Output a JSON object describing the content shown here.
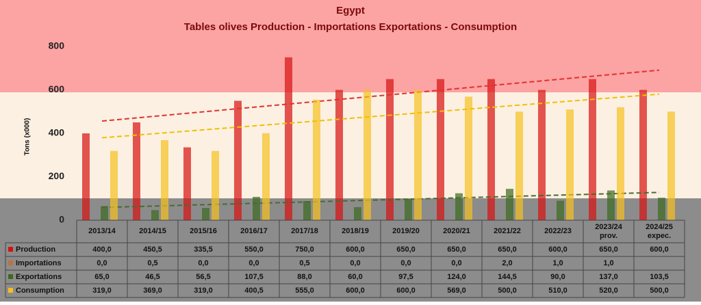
{
  "chart_data": {
    "type": "bar",
    "title": "Egypt",
    "subtitle": "Tables olives Production - Importations Exportations - Consumption",
    "y_label": "Tons (x000)",
    "categories": [
      "2013/14",
      "2014/15",
      "2015/16",
      "2016/17",
      "2017/18",
      "2018/19",
      "2019/20",
      "2020/21",
      "2021/22",
      "2022/23",
      "2023/24 prov.",
      "2024/25 expec."
    ],
    "ylim": [
      0,
      800
    ],
    "yticks": [
      0,
      200,
      400,
      600,
      800
    ],
    "series": [
      {
        "name": "Production",
        "color": "#d81010",
        "trendline": true,
        "trend_color": "#e03030",
        "values": [
          400,
          450.5,
          335.5,
          550,
          750,
          600,
          650,
          650,
          650,
          600,
          650,
          600
        ],
        "value_labels": [
          "400,0",
          "450,5",
          "335,5",
          "550,0",
          "750,0",
          "600,0",
          "650,0",
          "650,0",
          "650,0",
          "600,0",
          "650,0",
          "600,0"
        ]
      },
      {
        "name": "Importations",
        "color": "#c0703a",
        "trendline": false,
        "values": [
          0,
          0.5,
          0,
          0,
          0.5,
          0,
          0,
          0,
          2,
          1,
          1,
          null
        ],
        "value_labels": [
          "0,0",
          "0,5",
          "0,0",
          "0,0",
          "0,5",
          "0,0",
          "0,0",
          "0,0",
          "2,0",
          "1,0",
          "1,0",
          null
        ]
      },
      {
        "name": "Exportations",
        "color": "#3a6a1e",
        "trendline": true,
        "trend_color": "#4a6a30",
        "values": [
          65,
          46.5,
          56.5,
          107.5,
          88,
          60,
          97.5,
          124,
          144.5,
          90,
          137,
          103.5
        ],
        "value_labels": [
          "65,0",
          "46,5",
          "56,5",
          "107,5",
          "88,0",
          "60,0",
          "97,5",
          "124,0",
          "144,5",
          "90,0",
          "137,0",
          "103,5"
        ]
      },
      {
        "name": "Consumption",
        "color": "#f5c020",
        "trendline": true,
        "trend_color": "#f0c000",
        "values": [
          319,
          369,
          319,
          400.5,
          555,
          600,
          600,
          569,
          500,
          510,
          520,
          500
        ],
        "value_labels": [
          "319,0",
          "369,0",
          "319,0",
          "400,5",
          "555,0",
          "600,0",
          "600,0",
          "569,0",
          "500,0",
          "510,0",
          "520,0",
          "500,0"
        ]
      }
    ]
  }
}
